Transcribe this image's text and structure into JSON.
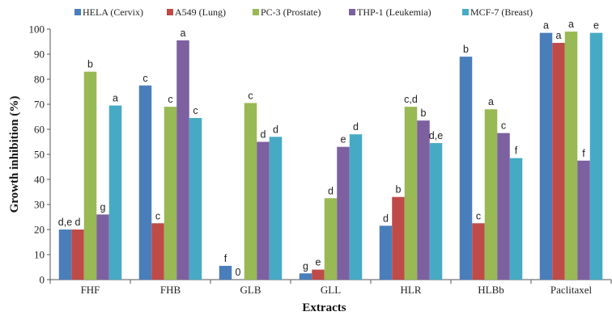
{
  "chart_data": {
    "type": "bar",
    "xlabel": "Extracts",
    "ylabel": "Growth inhibition (%)",
    "ylim": [
      0,
      100
    ],
    "yticks": [
      0,
      10,
      20,
      30,
      40,
      50,
      60,
      70,
      80,
      90,
      100
    ],
    "grid": false,
    "legend_position": "top",
    "categories": [
      "FHF",
      "FHB",
      "GLB",
      "GLL",
      "HLR",
      "HLBb",
      "Paclitaxel"
    ],
    "series": [
      {
        "name": "HELA (Cervix)",
        "color": "#4a7ebb",
        "values": [
          20,
          77.5,
          5.5,
          2.5,
          21.5,
          89,
          98.5
        ],
        "labels": [
          "d,e",
          "c",
          "f",
          "g",
          "d",
          "b",
          "a"
        ]
      },
      {
        "name": "A549 (Lung)",
        "color": "#be4b48",
        "values": [
          20,
          22.5,
          0,
          4,
          33,
          22.5,
          94.5
        ],
        "labels": [
          "d",
          "c",
          "0",
          "e",
          "b",
          "c",
          "a"
        ]
      },
      {
        "name": "PC-3 (Prostate)",
        "color": "#98b954",
        "values": [
          83,
          69,
          70.5,
          32.5,
          69,
          68,
          99
        ],
        "labels": [
          "b",
          "c",
          "c",
          "d",
          "c,d",
          "a",
          "a"
        ]
      },
      {
        "name": "THP-1 (Leukemia)",
        "color": "#7d60a0",
        "values": [
          26,
          95.5,
          55,
          53,
          63.5,
          58.5,
          47.5
        ],
        "labels": [
          "g",
          "a",
          "d",
          "e",
          "b",
          "c",
          "f"
        ]
      },
      {
        "name": "MCF-7 (Breast)",
        "color": "#46aac5",
        "values": [
          69.5,
          64.5,
          57,
          58,
          54.5,
          48.5,
          98.5
        ],
        "labels": [
          "a",
          "c",
          "d",
          "d",
          "d,e",
          "f",
          "e"
        ]
      }
    ]
  }
}
